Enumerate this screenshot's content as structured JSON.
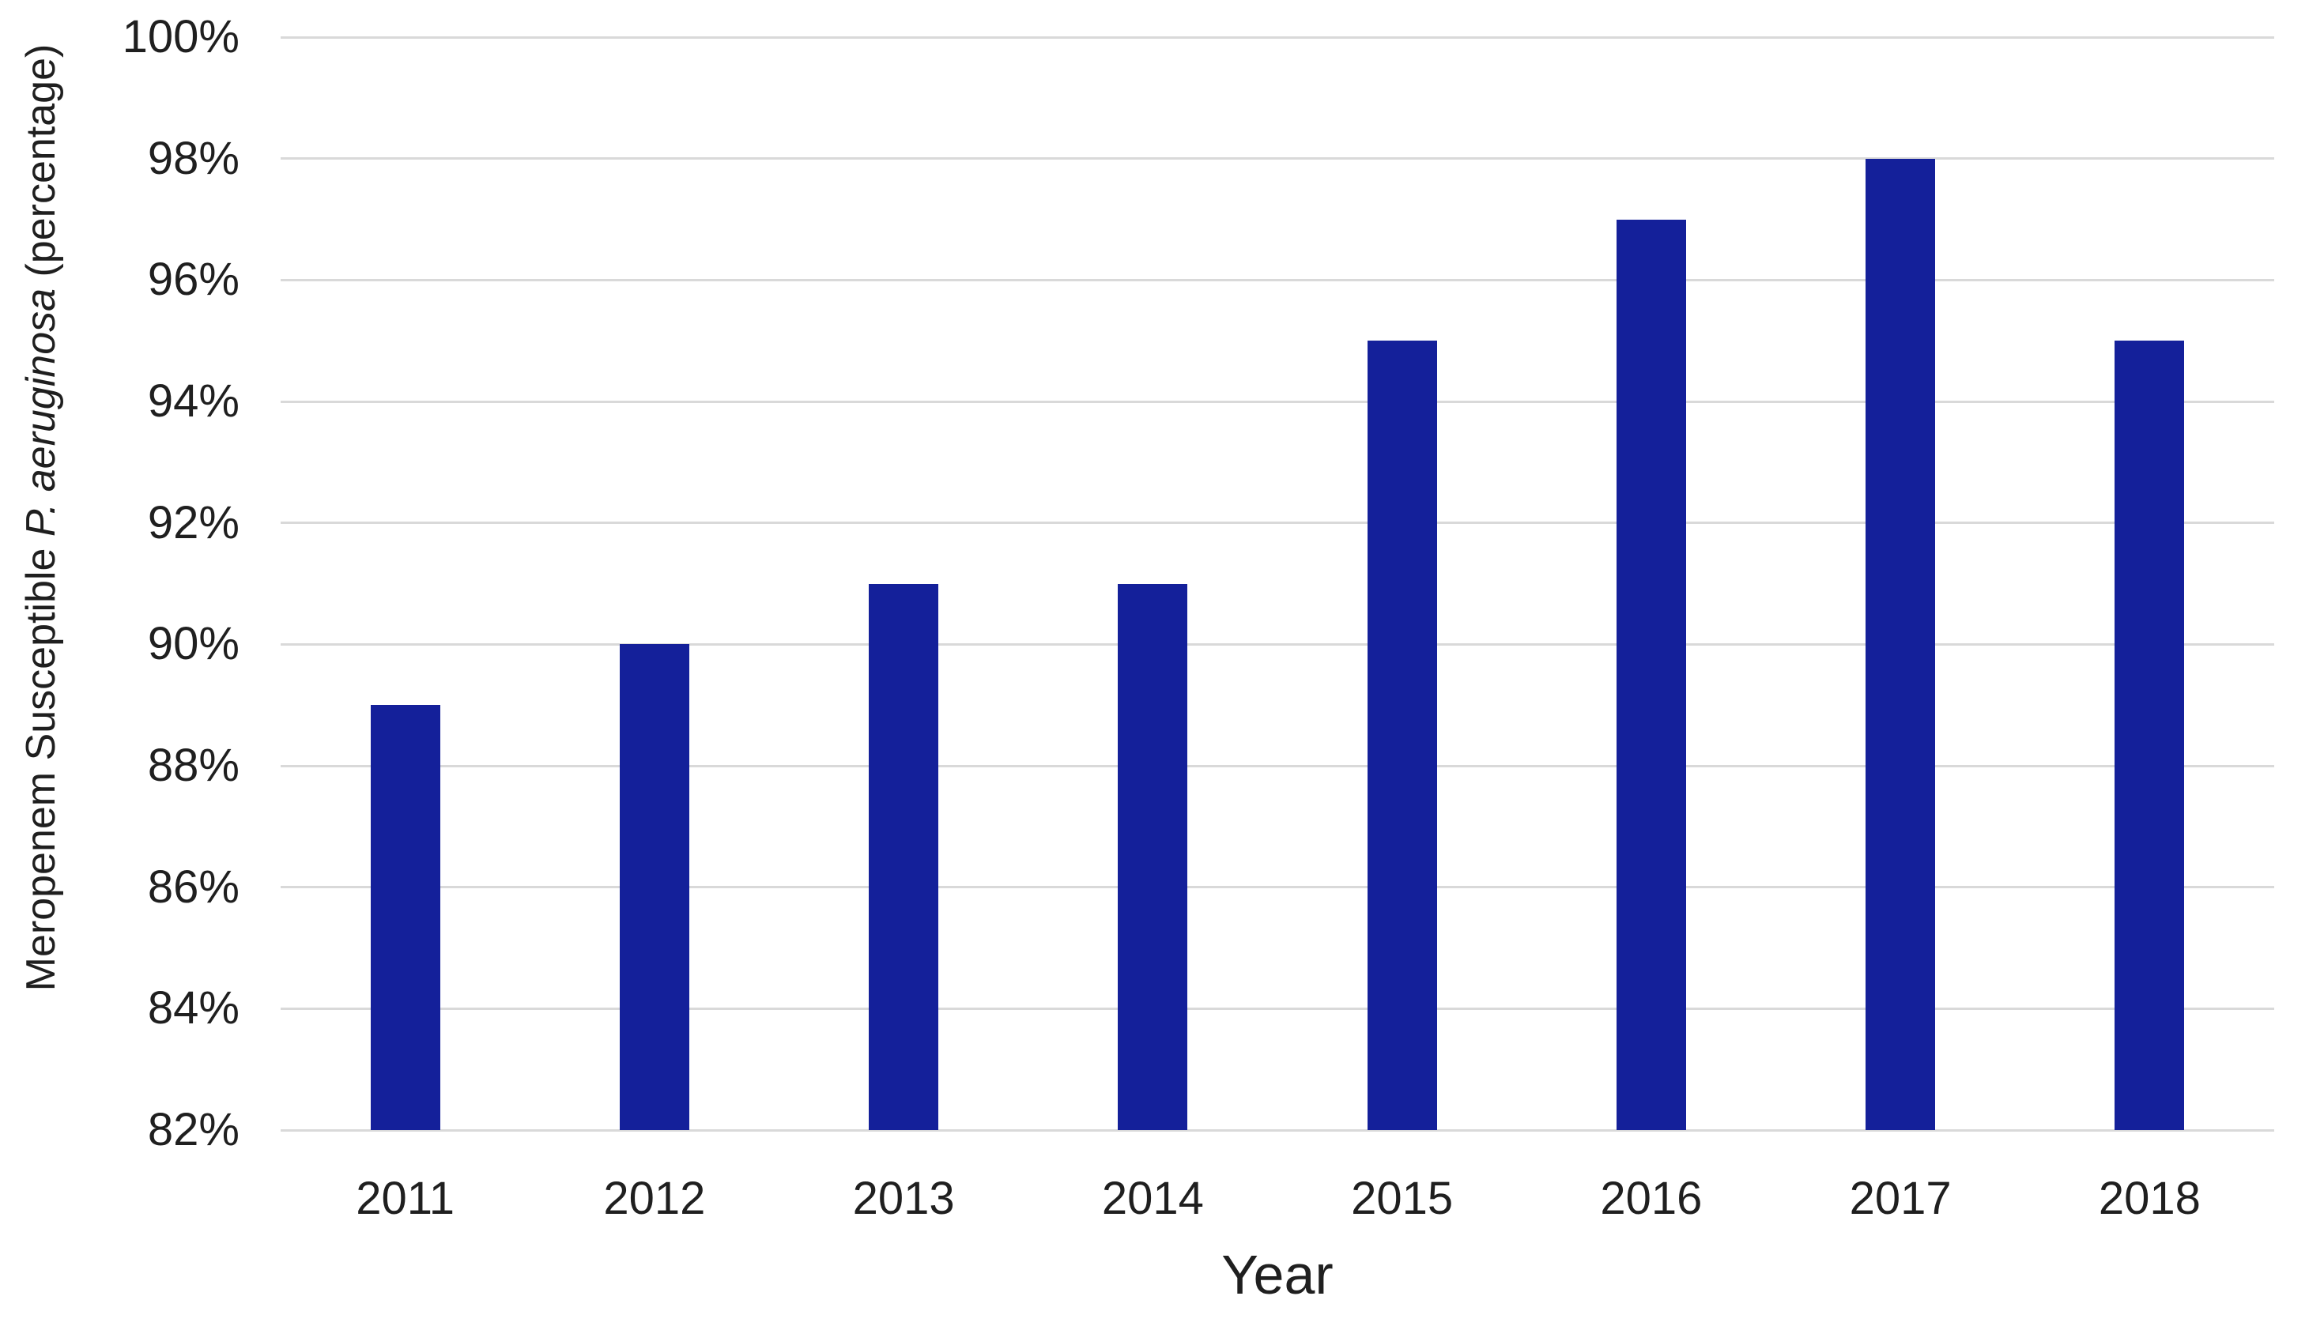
{
  "chart_data": {
    "type": "bar",
    "title": "",
    "categories": [
      "2011",
      "2012",
      "2013",
      "2014",
      "2015",
      "2016",
      "2017",
      "2018"
    ],
    "values": [
      89,
      90,
      91,
      91,
      95,
      97,
      98,
      95
    ],
    "xlabel": "Year",
    "ylabel": "Meropenem Susceptible P. aeruginosa (percentage)",
    "ylabel_parts": {
      "prefix": "Meropenem Susceptible ",
      "italic": "P. aeruginosa",
      "suffix": " (percentage)"
    },
    "ylim": [
      82,
      100
    ],
    "ytick_step": 2,
    "ytick_labels": [
      "82%",
      "84%",
      "86%",
      "88%",
      "90%",
      "92%",
      "94%",
      "96%",
      "98%",
      "100%"
    ],
    "ytick_suffix": "%",
    "grid": "horizontal",
    "legend": "none",
    "bar_color": "#14209A",
    "gridline_color": "#D9D9D9",
    "text_color": "#1f1f1f",
    "background_color": "#ffffff"
  }
}
